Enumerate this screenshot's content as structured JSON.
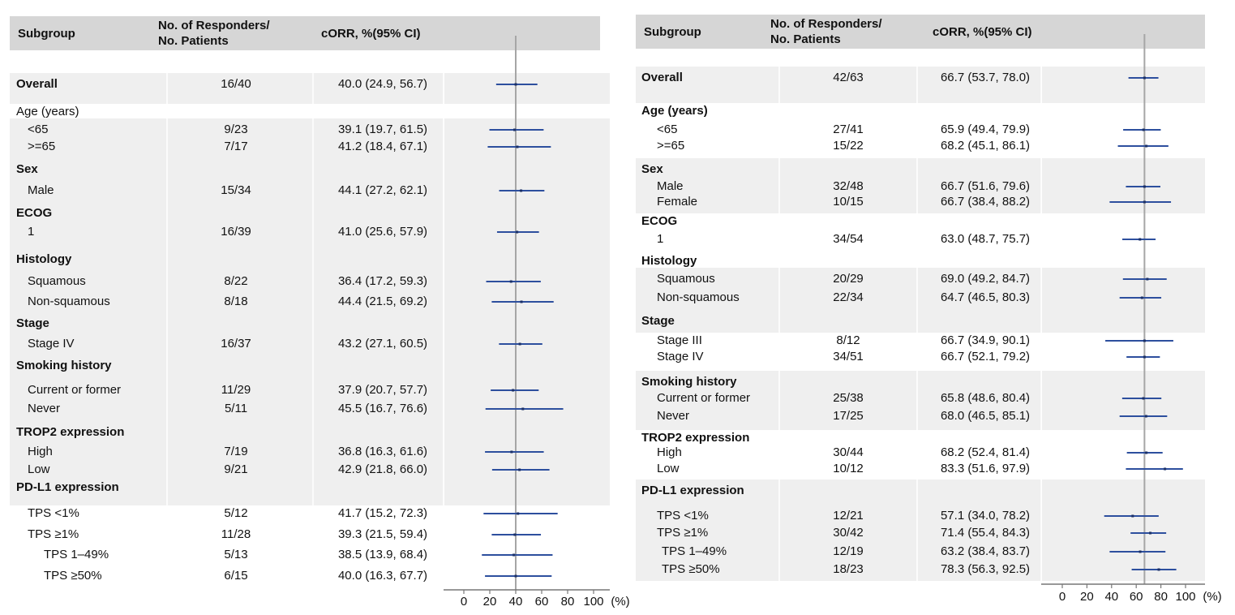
{
  "colors": {
    "header_bg": "#d6d6d6",
    "band_bg": "#efefef",
    "ci_line": "#2d4f9e",
    "ref_line": "#a6a6a6",
    "axis": "#777777"
  },
  "chart_data": [
    {
      "type": "forest",
      "columns": {
        "subgroup": "Subgroup",
        "responders": "No. of Responders/\nNo. Patients",
        "estimate": "cORR, %(95% CI)"
      },
      "x_ticks": [
        "0",
        "20",
        "40",
        "60",
        "80",
        "100"
      ],
      "x_unit": "(%)",
      "xlim": [
        0,
        100
      ],
      "reference_value": 40,
      "bands": [
        [
          0,
          0
        ],
        [
          2,
          3
        ],
        [
          4,
          4
        ],
        [
          5,
          7
        ],
        [
          8,
          8
        ],
        [
          9,
          11
        ],
        [
          12,
          14
        ],
        [
          15,
          19
        ]
      ],
      "rows": [
        {
          "label": "Overall",
          "level": 0,
          "bold": true,
          "np": "16/40",
          "ci_text": "40.0 (24.9, 56.7)",
          "est": 40.0,
          "lo": 24.9,
          "hi": 56.7
        },
        {
          "label": "Age (years)",
          "level": 0,
          "bold": false
        },
        {
          "label": "<65",
          "level": 1,
          "np": "9/23",
          "ci_text": "39.1 (19.7, 61.5)",
          "est": 39.1,
          "lo": 19.7,
          "hi": 61.5
        },
        {
          "label": ">=65",
          "level": 1,
          "np": "7/17",
          "ci_text": "41.2 (18.4, 67.1)",
          "est": 41.2,
          "lo": 18.4,
          "hi": 67.1
        },
        {
          "label": "Sex",
          "level": 0,
          "bold": true
        },
        {
          "label": "Male",
          "level": 1,
          "np": "15/34",
          "ci_text": "44.1 (27.2, 62.1)",
          "est": 44.1,
          "lo": 27.2,
          "hi": 62.1
        },
        {
          "label": "ECOG",
          "level": 0,
          "bold": true
        },
        {
          "label": "1",
          "level": 1,
          "np": "16/39",
          "ci_text": "41.0 (25.6, 57.9)",
          "est": 41.0,
          "lo": 25.6,
          "hi": 57.9
        },
        {
          "label": "Histology",
          "level": 0,
          "bold": true
        },
        {
          "label": "Squamous",
          "level": 1,
          "np": "8/22",
          "ci_text": "36.4 (17.2, 59.3)",
          "est": 36.4,
          "lo": 17.2,
          "hi": 59.3
        },
        {
          "label": "Non-squamous",
          "level": 1,
          "np": "8/18",
          "ci_text": "44.4 (21.5, 69.2)",
          "est": 44.4,
          "lo": 21.5,
          "hi": 69.2
        },
        {
          "label": "Stage",
          "level": 0,
          "bold": true
        },
        {
          "label": "Stage IV",
          "level": 1,
          "np": "16/37",
          "ci_text": "43.2 (27.1, 60.5)",
          "est": 43.2,
          "lo": 27.1,
          "hi": 60.5
        },
        {
          "label": "Smoking history",
          "level": 0,
          "bold": true
        },
        {
          "label": "Current or former",
          "level": 1,
          "np": "11/29",
          "ci_text": "37.9 (20.7, 57.7)",
          "est": 37.9,
          "lo": 20.7,
          "hi": 57.7
        },
        {
          "label": "Never",
          "level": 1,
          "np": "5/11",
          "ci_text": "45.5 (16.7, 76.6)",
          "est": 45.5,
          "lo": 16.7,
          "hi": 76.6
        },
        {
          "label": "TROP2 expression",
          "level": 0,
          "bold": true
        },
        {
          "label": "High",
          "level": 1,
          "np": "7/19",
          "ci_text": "36.8 (16.3, 61.6)",
          "est": 36.8,
          "lo": 16.3,
          "hi": 61.6
        },
        {
          "label": "Low",
          "level": 1,
          "np": "9/21",
          "ci_text": "42.9 (21.8, 66.0)",
          "est": 42.9,
          "lo": 21.8,
          "hi": 66.0
        },
        {
          "label": "PD-L1 expression",
          "level": 0,
          "bold": true
        },
        {
          "label": "TPS <1%",
          "level": 1,
          "np": "5/12",
          "ci_text": "41.7 (15.2, 72.3)",
          "est": 41.7,
          "lo": 15.2,
          "hi": 72.3
        },
        {
          "label": "TPS ≥1%",
          "level": 1,
          "np": "11/28",
          "ci_text": "39.3 (21.5, 59.4)",
          "est": 39.3,
          "lo": 21.5,
          "hi": 59.4
        },
        {
          "label": "TPS 1–49%",
          "level": 2,
          "np": "5/13",
          "ci_text": "38.5 (13.9, 68.4)",
          "est": 38.5,
          "lo": 13.9,
          "hi": 68.4
        },
        {
          "label": "TPS ≥50%",
          "level": 2,
          "np": "6/15",
          "ci_text": "40.0 (16.3, 67.7)",
          "est": 40.0,
          "lo": 16.3,
          "hi": 67.7
        }
      ]
    },
    {
      "type": "forest",
      "columns": {
        "subgroup": "Subgroup",
        "responders": "No. of Responders/\nNo. Patients",
        "estimate": "cORR, %(95% CI)"
      },
      "x_ticks": [
        "0",
        "20",
        "40",
        "60",
        "80",
        "100"
      ],
      "x_unit": "(%)",
      "xlim": [
        0,
        100
      ],
      "reference_value": 66.7,
      "bands": [
        [
          0,
          0
        ],
        [
          4,
          6
        ],
        [
          10,
          12
        ],
        [
          15,
          17
        ],
        [
          21,
          25
        ]
      ],
      "rows": [
        {
          "label": "Overall",
          "level": 0,
          "bold": true,
          "np": "42/63",
          "ci_text": "66.7 (53.7, 78.0)",
          "est": 66.7,
          "lo": 53.7,
          "hi": 78.0
        },
        {
          "label": "Age (years)",
          "level": 0,
          "bold": true
        },
        {
          "label": "<65",
          "level": 1,
          "np": "27/41",
          "ci_text": "65.9 (49.4, 79.9)",
          "est": 65.9,
          "lo": 49.4,
          "hi": 79.9
        },
        {
          "label": ">=65",
          "level": 1,
          "np": "15/22",
          "ci_text": "68.2 (45.1, 86.1)",
          "est": 68.2,
          "lo": 45.1,
          "hi": 86.1
        },
        {
          "label": "Sex",
          "level": 0,
          "bold": true
        },
        {
          "label": "Male",
          "level": 1,
          "np": "32/48",
          "ci_text": "66.7 (51.6, 79.6)",
          "est": 66.7,
          "lo": 51.6,
          "hi": 79.6
        },
        {
          "label": "Female",
          "level": 1,
          "np": "10/15",
          "ci_text": "66.7 (38.4, 88.2)",
          "est": 66.7,
          "lo": 38.4,
          "hi": 88.2
        },
        {
          "label": "ECOG",
          "level": 0,
          "bold": true
        },
        {
          "label": "1",
          "level": 1,
          "np": "34/54",
          "ci_text": "63.0 (48.7, 75.7)",
          "est": 63.0,
          "lo": 48.7,
          "hi": 75.7
        },
        {
          "label": "Histology",
          "level": 0,
          "bold": true
        },
        {
          "label": "Squamous",
          "level": 1,
          "np": "20/29",
          "ci_text": "69.0 (49.2, 84.7)",
          "est": 69.0,
          "lo": 49.2,
          "hi": 84.7
        },
        {
          "label": "Non-squamous",
          "level": 1,
          "np": "22/34",
          "ci_text": "64.7 (46.5, 80.3)",
          "est": 64.7,
          "lo": 46.5,
          "hi": 80.3
        },
        {
          "label": "Stage",
          "level": 0,
          "bold": true
        },
        {
          "label": "Stage III",
          "level": 1,
          "np": "8/12",
          "ci_text": "66.7 (34.9, 90.1)",
          "est": 66.7,
          "lo": 34.9,
          "hi": 90.1
        },
        {
          "label": "Stage IV",
          "level": 1,
          "np": "34/51",
          "ci_text": "66.7 (52.1, 79.2)",
          "est": 66.7,
          "lo": 52.1,
          "hi": 79.2
        },
        {
          "label": "Smoking history",
          "level": 0,
          "bold": true
        },
        {
          "label": "Current or former",
          "level": 1,
          "np": "25/38",
          "ci_text": "65.8 (48.6, 80.4)",
          "est": 65.8,
          "lo": 48.6,
          "hi": 80.4
        },
        {
          "label": "Never",
          "level": 1,
          "np": "17/25",
          "ci_text": "68.0 (46.5, 85.1)",
          "est": 68.0,
          "lo": 46.5,
          "hi": 85.1
        },
        {
          "label": "TROP2 expression",
          "level": 0,
          "bold": true
        },
        {
          "label": "High",
          "level": 1,
          "np": "30/44",
          "ci_text": "68.2 (52.4, 81.4)",
          "est": 68.2,
          "lo": 52.4,
          "hi": 81.4
        },
        {
          "label": "Low",
          "level": 1,
          "np": "10/12",
          "ci_text": "83.3 (51.6, 97.9)",
          "est": 83.3,
          "lo": 51.6,
          "hi": 97.9
        },
        {
          "label": "PD-L1 expression",
          "level": 0,
          "bold": true
        },
        {
          "label": "TPS <1%",
          "level": 1,
          "np": "12/21",
          "ci_text": "57.1 (34.0, 78.2)",
          "est": 57.1,
          "lo": 34.0,
          "hi": 78.2
        },
        {
          "label": "TPS ≥1%",
          "level": 1,
          "np": "30/42",
          "ci_text": "71.4 (55.4, 84.3)",
          "est": 71.4,
          "lo": 55.4,
          "hi": 84.3
        },
        {
          "label": "TPS 1–49%",
          "level": 2,
          "np": "12/19",
          "ci_text": "63.2 (38.4, 83.7)",
          "est": 63.2,
          "lo": 38.4,
          "hi": 83.7
        },
        {
          "label": "TPS ≥50%",
          "level": 2,
          "np": "18/23",
          "ci_text": "78.3 (56.3, 92.5)",
          "est": 78.3,
          "lo": 56.3,
          "hi": 92.5
        }
      ]
    }
  ]
}
